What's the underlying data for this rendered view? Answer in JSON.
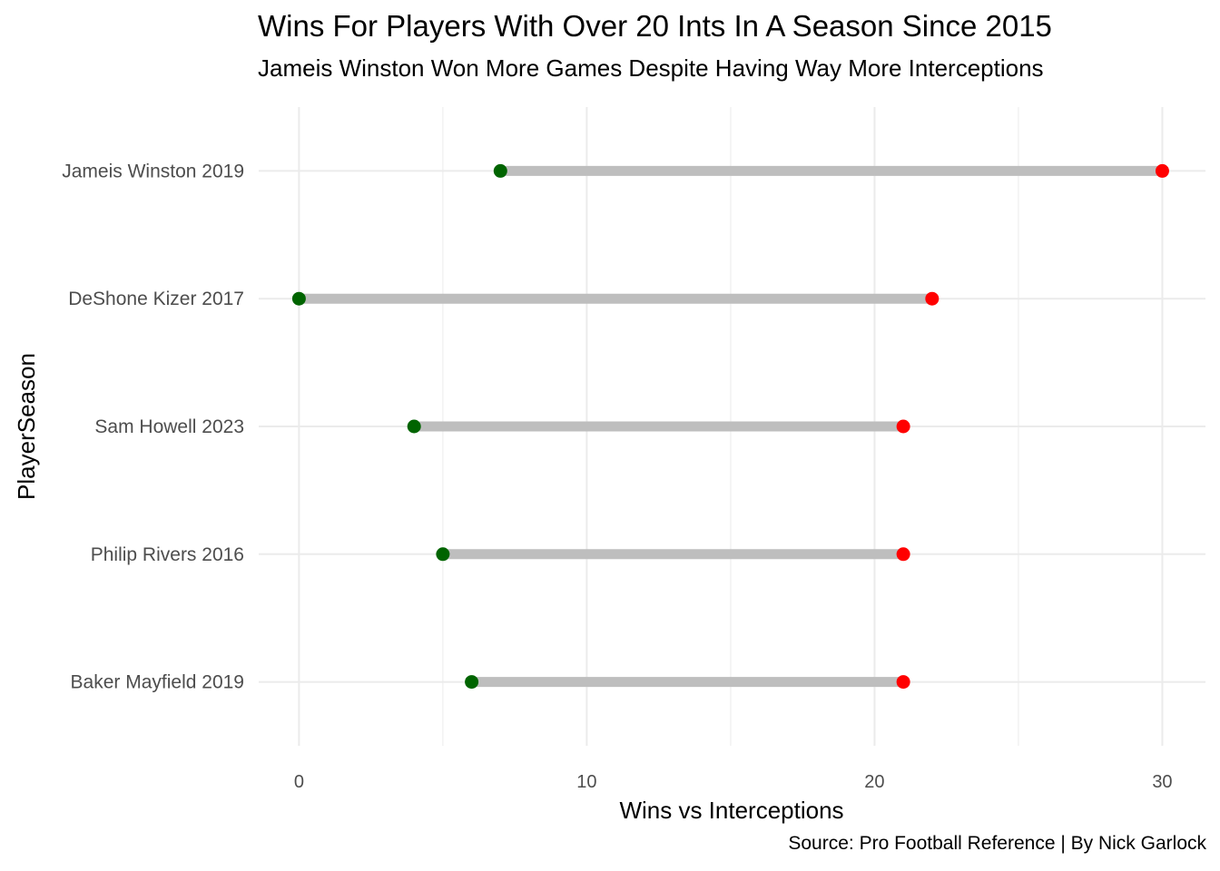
{
  "chart_data": {
    "type": "dumbbell",
    "title": "Wins For Players With Over 20 Ints In A Season Since 2015",
    "subtitle": "Jameis Winston Won More Games Despite Having Way More Interceptions",
    "caption": "Source: Pro Football Reference | By Nick Garlock",
    "xlabel": "Wins vs Interceptions",
    "ylabel": "PlayerSeason",
    "xlim": [
      -1.4,
      31.5
    ],
    "xticks": [
      0,
      10,
      20,
      30
    ],
    "grid": true,
    "colors": {
      "wins": "#006400",
      "interceptions": "#ff0000",
      "segment": "#bebebe",
      "grid": "#ebebeb"
    },
    "categories": [
      "Jameis Winston 2019",
      "DeShone Kizer 2017",
      "Sam Howell 2023",
      "Philip Rivers 2016",
      "Baker Mayfield 2019"
    ],
    "wins": [
      7,
      0,
      4,
      5,
      6
    ],
    "interceptions": [
      30,
      22,
      21,
      21,
      21
    ]
  }
}
